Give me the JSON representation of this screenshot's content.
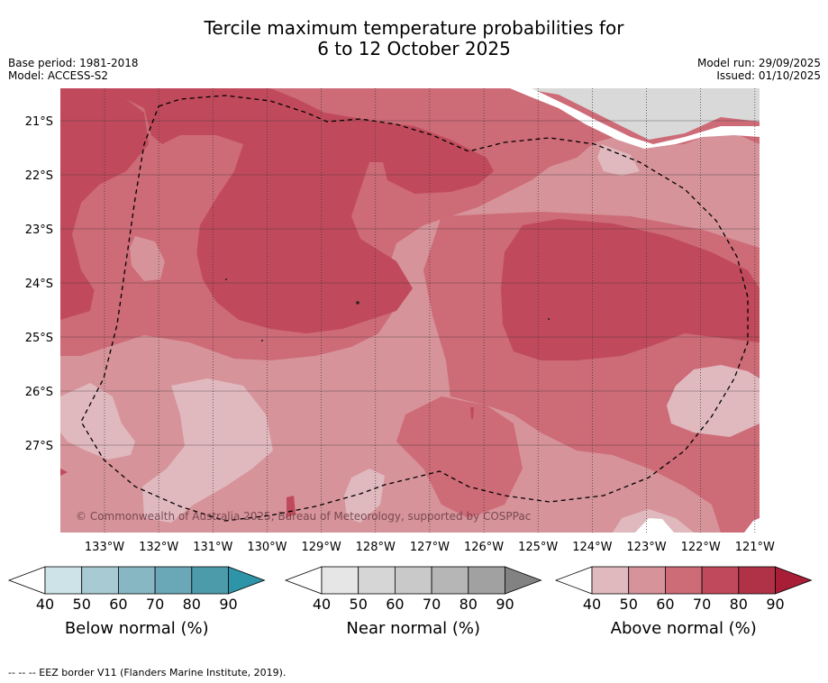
{
  "title": {
    "line1": "Tercile maximum temperature probabilities for",
    "line2": "6 to 12 October 2025"
  },
  "meta": {
    "base_period": "Base period: 1981-2018",
    "model": "Model: ACCESS-S2",
    "model_run": "Model run: 29/09/2025",
    "issued": "Issued: 01/10/2025"
  },
  "map": {
    "copyright": "© Commonwealth of Australia 2025, Bureau of Meteorology, supported by COSPPac",
    "lat_labels": [
      "21°S",
      "22°S",
      "23°S",
      "24°S",
      "25°S",
      "26°S",
      "27°S"
    ],
    "lon_labels": [
      "133°W",
      "132°W",
      "131°W",
      "130°W",
      "129°W",
      "128°W",
      "127°W",
      "126°W",
      "125°W",
      "124°W",
      "123°W",
      "122°W",
      "121°W"
    ],
    "colors": {
      "above_40_50": "#e0b9bf",
      "above_50_60": "#d6939a",
      "above_60_70": "#cd6b77",
      "above_70_80": "#c04a5b",
      "land_nodata": "#d9d9d9",
      "grid": "#333333"
    }
  },
  "colorbars": [
    {
      "name": "below",
      "title": "Below normal (%)",
      "ticks": [
        "40",
        "50",
        "60",
        "70",
        "80",
        "90"
      ],
      "colors": [
        "#cde3e8",
        "#a8cbd3",
        "#87b7c3",
        "#6aa8b7",
        "#4c9bab",
        "#2e94a8"
      ]
    },
    {
      "name": "near",
      "title": "Near normal (%)",
      "ticks": [
        "40",
        "50",
        "60",
        "70",
        "80",
        "90"
      ],
      "colors": [
        "#e6e6e6",
        "#d6d6d6",
        "#c9c9c9",
        "#b6b6b6",
        "#a1a1a1",
        "#828282"
      ]
    },
    {
      "name": "above",
      "title": "Above normal (%)",
      "ticks": [
        "40",
        "50",
        "60",
        "70",
        "80",
        "90"
      ],
      "colors": [
        "#e0b9bf",
        "#d6939a",
        "#cd6b77",
        "#c04a5b",
        "#b03247",
        "#a81e36"
      ]
    }
  ],
  "footer": "--  --  -- EEZ border V11 (Flanders Marine Institute, 2019)."
}
